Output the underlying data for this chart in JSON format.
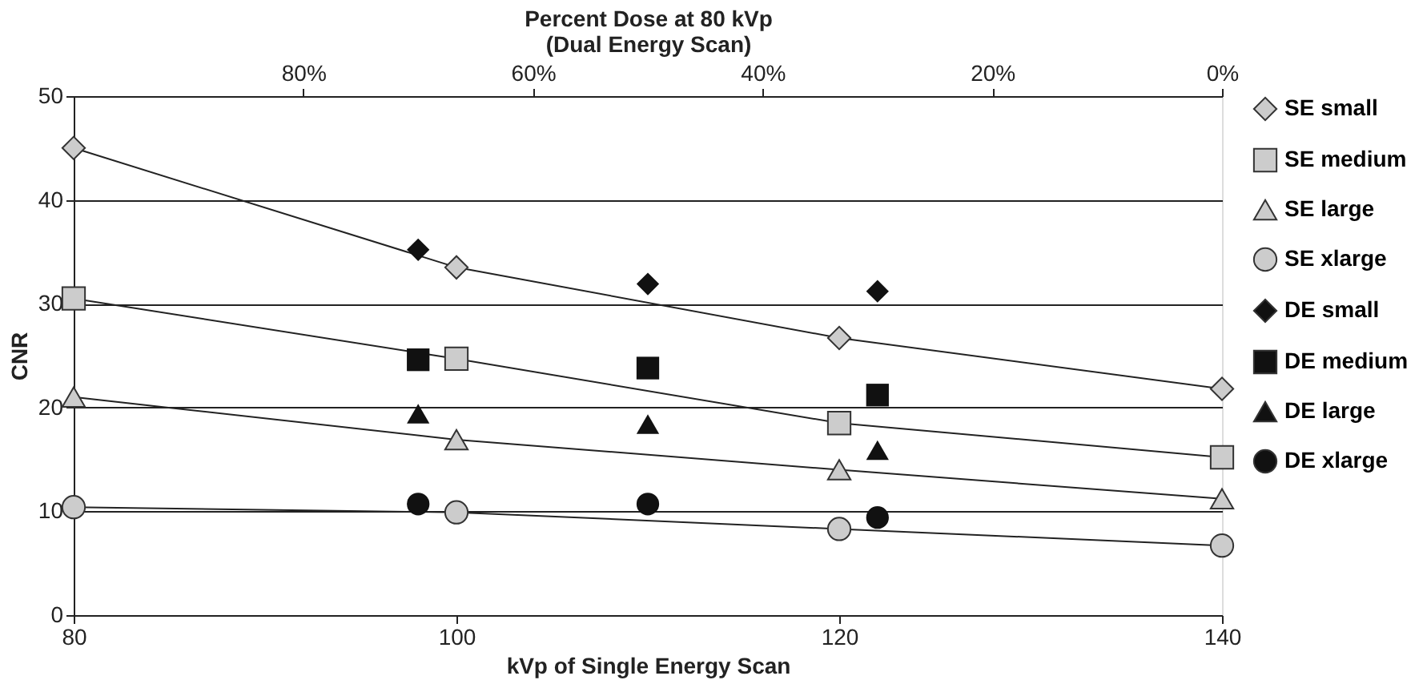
{
  "chart_data": {
    "type": "line",
    "xlabel": "kVp of Single Energy Scan",
    "ylabel": "CNR",
    "x2label": "Percent Dose at 80 kVp\n(Dual Energy Scan)",
    "xlim": [
      80,
      140
    ],
    "xticks": [
      80,
      100,
      120,
      140
    ],
    "ylim": [
      0,
      50
    ],
    "yticks": [
      0,
      10,
      20,
      30,
      40,
      50
    ],
    "x2lim": [
      100,
      0
    ],
    "x2ticks": [
      {
        "value": 80,
        "label": "80%"
      },
      {
        "value": 60,
        "label": "60%"
      },
      {
        "value": 40,
        "label": "40%"
      },
      {
        "value": 20,
        "label": "20%"
      },
      {
        "value": 0,
        "label": "0%"
      }
    ],
    "grid": "y",
    "legend": "right",
    "series": [
      {
        "name": "SE small",
        "marker": "diamond",
        "color": "#cccccc",
        "x": [
          80,
          100,
          120,
          140
        ],
        "values": [
          45,
          33.5,
          26.7,
          21.8
        ]
      },
      {
        "name": "SE medium",
        "marker": "square",
        "color": "#cccccc",
        "x": [
          80,
          100,
          120,
          140
        ],
        "values": [
          30.5,
          24.7,
          18.5,
          15.2
        ]
      },
      {
        "name": "SE large",
        "marker": "triangle",
        "color": "#cccccc",
        "x": [
          80,
          100,
          120,
          140
        ],
        "values": [
          21,
          16.9,
          14,
          11.2
        ]
      },
      {
        "name": "SE xlarge",
        "marker": "circle",
        "color": "#cccccc",
        "x": [
          80,
          100,
          120,
          140
        ],
        "values": [
          10.4,
          9.9,
          8.3,
          6.7
        ]
      },
      {
        "name": "DE small",
        "type": "scatter",
        "marker": "diamond",
        "color": "#111111",
        "x": [
          98,
          110,
          122
        ],
        "values": [
          35.2,
          31.9,
          31.2
        ]
      },
      {
        "name": "DE medium",
        "type": "scatter",
        "marker": "square",
        "color": "#111111",
        "x": [
          98,
          110,
          122
        ],
        "values": [
          24.6,
          23.8,
          21.2
        ]
      },
      {
        "name": "DE large",
        "type": "scatter",
        "marker": "triangle",
        "color": "#111111",
        "x": [
          98,
          110,
          122
        ],
        "values": [
          19.4,
          18.4,
          15.9
        ]
      },
      {
        "name": "DE xlarge",
        "type": "scatter",
        "marker": "circle",
        "color": "#111111",
        "x": [
          98,
          110,
          122
        ],
        "values": [
          10.7,
          10.7,
          9.4
        ]
      }
    ]
  }
}
